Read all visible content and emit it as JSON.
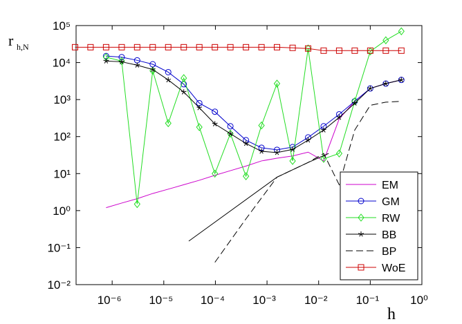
{
  "chart_data": {
    "type": "line",
    "y_label": "r",
    "y_label_subscript": "h,N",
    "x_label": "h",
    "log_x": true,
    "log_y": true,
    "xlim": [
      2e-07,
      1
    ],
    "ylim": [
      0.01,
      100000
    ],
    "xticks": [
      {
        "value": 1e-06,
        "label": "10⁻⁶"
      },
      {
        "value": 1e-05,
        "label": "10⁻⁵"
      },
      {
        "value": 0.0001,
        "label": "10⁻⁴"
      },
      {
        "value": 0.001,
        "label": "10⁻³"
      },
      {
        "value": 0.01,
        "label": "10⁻²"
      },
      {
        "value": 0.1,
        "label": "10⁻¹"
      },
      {
        "value": 1,
        "label": "10⁰"
      }
    ],
    "yticks": [
      {
        "value": 0.01,
        "label": "10⁻²"
      },
      {
        "value": 0.1,
        "label": "10⁻¹"
      },
      {
        "value": 1,
        "label": "10⁰"
      },
      {
        "value": 10,
        "label": "10¹"
      },
      {
        "value": 100,
        "label": "10²"
      },
      {
        "value": 1000,
        "label": "10³"
      },
      {
        "value": 10000,
        "label": "10⁴"
      },
      {
        "value": 100000,
        "label": "10⁵"
      }
    ],
    "legend": "lower right",
    "series": [
      {
        "name": "EM",
        "color": "#cc00cc",
        "marker": "none",
        "dash": "solid",
        "x": [
          7.63e-07,
          1.53e-06,
          3.05e-06,
          6.1e-06,
          1.22e-05,
          2.44e-05,
          4.88e-05,
          9.77e-05,
          0.000195,
          0.000391,
          0.000781,
          0.00156,
          0.00313,
          0.00625,
          0.0125,
          0.025,
          0.05,
          0.1,
          0.2,
          0.4
        ],
        "values": [
          1.2,
          1.6,
          2.1,
          2.9,
          3.8,
          5,
          6.6,
          9,
          12,
          16,
          22,
          26,
          30,
          38,
          22,
          300,
          900,
          2000,
          2700,
          3400
        ]
      },
      {
        "name": "GM",
        "color": "#0000cc",
        "marker": "circle",
        "dash": "solid",
        "x": [
          7.63e-07,
          1.53e-06,
          3.05e-06,
          6.1e-06,
          1.22e-05,
          2.44e-05,
          4.88e-05,
          9.77e-05,
          0.000195,
          0.000391,
          0.000781,
          0.00156,
          0.00313,
          0.00625,
          0.0125,
          0.025,
          0.05,
          0.1,
          0.2,
          0.4
        ],
        "values": [
          15000,
          14000,
          11500,
          9000,
          5500,
          2600,
          800,
          470,
          190,
          80,
          50,
          44,
          52,
          95,
          190,
          400,
          900,
          2000,
          2700,
          3400
        ]
      },
      {
        "name": "RW",
        "color": "#22dd22",
        "marker": "diamond",
        "dash": "solid",
        "x": [
          7.63e-07,
          1.53e-06,
          3.05e-06,
          6.1e-06,
          1.22e-05,
          2.44e-05,
          4.88e-05,
          9.77e-05,
          0.000195,
          0.000391,
          0.000781,
          0.00156,
          0.00313,
          0.00625,
          0.0125,
          0.025,
          0.05,
          0.1,
          0.2,
          0.4
        ],
        "values": [
          14000,
          11000,
          1.5,
          6000,
          230,
          3800,
          180,
          10,
          120,
          8.5,
          200,
          2700,
          22,
          24000,
          25,
          35,
          900,
          20000,
          40000,
          70000
        ]
      },
      {
        "name": "BB",
        "color": "#000000",
        "marker": "star",
        "dash": "solid",
        "x": [
          7.63e-07,
          1.53e-06,
          3.05e-06,
          6.1e-06,
          1.22e-05,
          2.44e-05,
          4.88e-05,
          9.77e-05,
          0.000195,
          0.000391,
          0.000781,
          0.00156,
          0.00313,
          0.00625,
          0.0125,
          0.025,
          0.05,
          0.1,
          0.2,
          0.4
        ],
        "values": [
          11000,
          10500,
          8500,
          6500,
          3400,
          1600,
          600,
          220,
          120,
          65,
          40,
          37,
          45,
          80,
          150,
          330,
          800,
          2000,
          2700,
          3400
        ]
      },
      {
        "name": "BP",
        "color": "#000000",
        "marker": "none",
        "dash": "dashed",
        "x": [
          9.77e-05,
          0.000391,
          0.00156,
          0.00625,
          0.0125,
          0.025,
          0.05,
          0.1,
          0.2,
          0.4
        ],
        "values": [
          0.04,
          0.6,
          8,
          20,
          35,
          5,
          150,
          700,
          850,
          900
        ]
      },
      {
        "name": "WoE",
        "color": "#cc0000",
        "marker": "square",
        "dash": "solid",
        "x": [
          1.91e-07,
          3.81e-07,
          7.63e-07,
          1.53e-06,
          3.05e-06,
          6.1e-06,
          1.22e-05,
          2.44e-05,
          4.88e-05,
          9.77e-05,
          0.000195,
          0.000391,
          0.000781,
          0.00156,
          0.00313,
          0.00625,
          0.0125,
          0.025,
          0.05,
          0.1,
          0.2,
          0.4
        ],
        "values": [
          26000,
          26000,
          26000,
          26000,
          26000,
          26000,
          26000,
          26000,
          26000,
          26000,
          26000,
          26000,
          26000,
          26000,
          25000,
          24000,
          21000,
          21000,
          21000,
          21000,
          21000,
          21000
        ]
      },
      {
        "color": "#000000",
        "marker": "none",
        "dash": "solid",
        "x": [
          3.05e-05,
          0.00156,
          0.00625,
          0.0156
        ],
        "values": [
          0.15,
          8,
          20,
          35
        ]
      }
    ]
  }
}
